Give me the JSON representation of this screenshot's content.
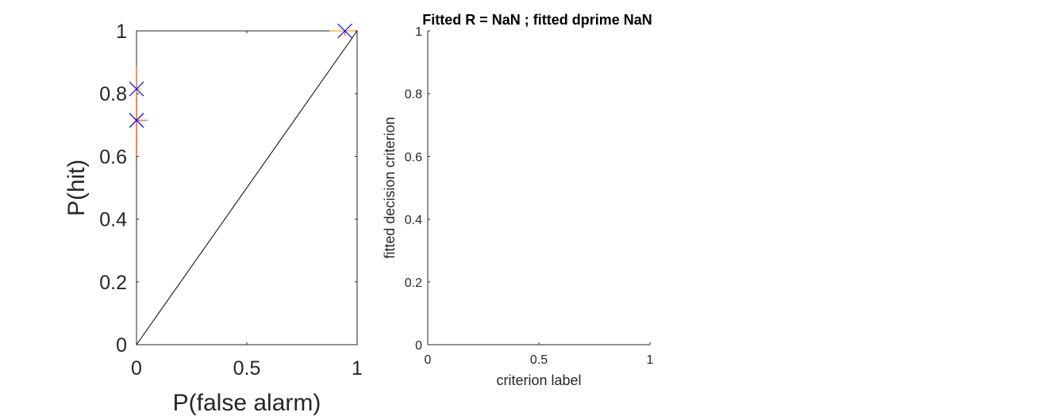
{
  "chart_data": [
    {
      "type": "line",
      "title": "",
      "xlabel": "P(false alarm)",
      "ylabel": "P(hit)",
      "xlim": [
        0,
        1
      ],
      "ylim": [
        0,
        1
      ],
      "xticks": [
        "0",
        "0.5",
        "1"
      ],
      "yticks": [
        "0",
        "0.2",
        "0.4",
        "0.6",
        "0.8",
        "1"
      ],
      "grid": false,
      "series": [
        {
          "kind": "diagonal",
          "color": "#000000",
          "x": [
            0,
            1
          ],
          "y": [
            0,
            1
          ]
        },
        {
          "kind": "markers",
          "marker": "x",
          "color": "#0000ff",
          "points": [
            {
              "x": 0.0,
              "y": 0.815
            },
            {
              "x": 0.0,
              "y": 0.715
            },
            {
              "x": 0.945,
              "y": 1.0
            }
          ]
        }
      ],
      "errorbars": [
        {
          "x": 0.0,
          "y": 0.815,
          "ylow": 0.61,
          "yhigh": 0.89,
          "xlow": 0.0,
          "xhigh": 0.02,
          "color_v": "#d95319",
          "color_h": "#edb120"
        },
        {
          "x": 0.0,
          "y": 0.715,
          "ylow": 0.6,
          "yhigh": 0.79,
          "xlow": 0.0,
          "xhigh": 0.05,
          "color_v": "#d95319",
          "color_h": "#d95319"
        },
        {
          "x": 0.945,
          "y": 1.0,
          "ylow": 0.985,
          "yhigh": 1.0,
          "xlow": 0.875,
          "xhigh": 0.99,
          "color_v": "#d95319",
          "color_h": "#edb120"
        }
      ]
    },
    {
      "type": "line",
      "title": "Fitted R = NaN ; fitted dprime NaN",
      "xlabel": "criterion label",
      "ylabel": "fitted decision criterion",
      "xlim": [
        0,
        1
      ],
      "ylim": [
        0,
        1
      ],
      "xticks": [
        "0",
        "0.5",
        "1"
      ],
      "yticks": [
        "0",
        "0.2",
        "0.4",
        "0.6",
        "0.8",
        "1"
      ],
      "grid": false,
      "series": []
    }
  ]
}
